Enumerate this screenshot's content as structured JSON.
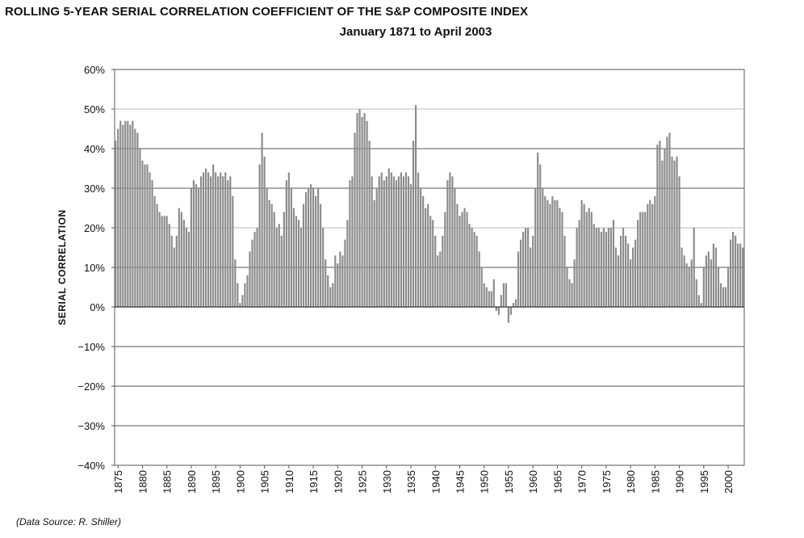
{
  "title": "ROLLING 5-YEAR SERIAL CORRELATION COEFFICIENT OF THE S&P COMPOSITE INDEX",
  "subtitle": "January 1871 to April 2003",
  "ylabel": "SERIAL CORRELATION",
  "source": "(Data Source: R. Shiller)",
  "colors": {
    "bars": "#8c8c8c",
    "grid": "#555555",
    "frame": "#555555"
  },
  "chart_data": {
    "type": "bar",
    "title": "ROLLING 5-YEAR SERIAL CORRELATION COEFFICIENT OF THE S&P COMPOSITE INDEX",
    "subtitle": "January 1871 to April 2003",
    "xlabel": "",
    "ylabel": "SERIAL CORRELATION",
    "xlim": [
      1874.3,
      2003.3
    ],
    "ylim": [
      -0.4,
      0.6
    ],
    "y_ticks": [
      0.6,
      0.5,
      0.4,
      0.3,
      0.2,
      0.1,
      0,
      -0.1,
      -0.2,
      -0.3,
      -0.4
    ],
    "y_tick_labels": [
      "60%",
      "50%",
      "40%",
      "30%",
      "20%",
      "10%",
      "0%",
      "−10%",
      "−20%",
      "−30%",
      "−40%"
    ],
    "x_tick_labels": [
      "1875",
      "1880",
      "1885",
      "1890",
      "1895",
      "1900",
      "1905",
      "1910",
      "1915",
      "1920",
      "1925",
      "1930",
      "1935",
      "1940",
      "1945",
      "1950",
      "1955",
      "1960",
      "1965",
      "1970",
      "1975",
      "1980",
      "1985",
      "1990",
      "1995",
      "2000"
    ],
    "grid": "horizontal",
    "series": [
      {
        "x": [
          1874.5,
          1875,
          1875.5,
          1876,
          1876.5,
          1877,
          1877.5,
          1878,
          1878.5,
          1879,
          1879.5,
          1880,
          1880.5,
          1881,
          1881.5,
          1882,
          1882.5,
          1883,
          1883.5,
          1884,
          1884.5,
          1885,
          1885.5,
          1886,
          1886.5,
          1887,
          1887.5,
          1888,
          1888.5,
          1889,
          1889.5,
          1890,
          1890.5,
          1891,
          1891.5,
          1892,
          1892.5,
          1893,
          1893.5,
          1894,
          1894.5,
          1895,
          1895.5,
          1896,
          1896.5,
          1897,
          1897.5,
          1898,
          1898.5,
          1899,
          1899.5,
          1900,
          1900.5,
          1901,
          1901.5,
          1902,
          1902.5,
          1903,
          1903.5,
          1904,
          1904.5,
          1905,
          1905.5,
          1906,
          1906.5,
          1907,
          1907.5,
          1908,
          1908.5,
          1909,
          1909.5,
          1910,
          1910.5,
          1911,
          1911.5,
          1912,
          1912.5,
          1913,
          1913.5,
          1914,
          1914.5,
          1915,
          1915.5,
          1916,
          1916.5,
          1917,
          1917.5,
          1918,
          1918.5,
          1919,
          1919.5,
          1920,
          1920.5,
          1921,
          1921.5,
          1922,
          1922.5,
          1923,
          1923.5,
          1924,
          1924.5,
          1925,
          1925.5,
          1926,
          1926.5,
          1927,
          1927.5,
          1928,
          1928.5,
          1929,
          1929.5,
          1930,
          1930.5,
          1931,
          1931.5,
          1932,
          1932.5,
          1933,
          1933.5,
          1934,
          1934.5,
          1935,
          1935.5,
          1936,
          1936.5,
          1937,
          1937.5,
          1938,
          1938.5,
          1939,
          1939.5,
          1940,
          1940.5,
          1941,
          1941.5,
          1942,
          1942.5,
          1943,
          1943.5,
          1944,
          1944.5,
          1945,
          1945.5,
          1946,
          1946.5,
          1947,
          1947.5,
          1948,
          1948.5,
          1949,
          1949.5,
          1950,
          1950.5,
          1951,
          1951.5,
          1952,
          1952.5,
          1953,
          1953.5,
          1954,
          1954.5,
          1955,
          1955.5,
          1956,
          1956.5,
          1957,
          1957.5,
          1958,
          1958.5,
          1959,
          1959.5,
          1960,
          1960.5,
          1961,
          1961.5,
          1962,
          1962.5,
          1963,
          1963.5,
          1964,
          1964.5,
          1965,
          1965.5,
          1966,
          1966.5,
          1967,
          1967.5,
          1968,
          1968.5,
          1969,
          1969.5,
          1970,
          1970.5,
          1971,
          1971.5,
          1972,
          1972.5,
          1973,
          1973.5,
          1974,
          1974.5,
          1975,
          1975.5,
          1976,
          1976.5,
          1977,
          1977.5,
          1978,
          1978.5,
          1979,
          1979.5,
          1980,
          1980.5,
          1981,
          1981.5,
          1982,
          1982.5,
          1983,
          1983.5,
          1984,
          1984.5,
          1985,
          1985.5,
          1986,
          1986.5,
          1987,
          1987.5,
          1988,
          1988.5,
          1989,
          1989.5,
          1990,
          1990.5,
          1991,
          1991.5,
          1992,
          1992.5,
          1993,
          1993.5,
          1994,
          1994.5,
          1995,
          1995.5,
          1996,
          1996.5,
          1997,
          1997.5,
          1998,
          1998.5,
          1999,
          1999.5,
          2000,
          2000.5,
          2001,
          2001.5,
          2002,
          2002.5,
          2003
        ],
        "y": [
          0.42,
          0.45,
          0.47,
          0.46,
          0.47,
          0.47,
          0.46,
          0.47,
          0.45,
          0.44,
          0.4,
          0.37,
          0.36,
          0.36,
          0.34,
          0.32,
          0.28,
          0.26,
          0.24,
          0.23,
          0.23,
          0.23,
          0.21,
          0.18,
          0.15,
          0.18,
          0.25,
          0.24,
          0.22,
          0.2,
          0.19,
          0.3,
          0.32,
          0.31,
          0.3,
          0.33,
          0.34,
          0.35,
          0.34,
          0.33,
          0.36,
          0.34,
          0.33,
          0.34,
          0.33,
          0.34,
          0.32,
          0.33,
          0.28,
          0.12,
          0.06,
          0.01,
          0.03,
          0.06,
          0.08,
          0.14,
          0.17,
          0.19,
          0.2,
          0.36,
          0.44,
          0.38,
          0.3,
          0.27,
          0.26,
          0.24,
          0.2,
          0.21,
          0.18,
          0.24,
          0.32,
          0.34,
          0.3,
          0.25,
          0.23,
          0.22,
          0.2,
          0.26,
          0.29,
          0.3,
          0.31,
          0.3,
          0.28,
          0.3,
          0.26,
          0.2,
          0.12,
          0.08,
          0.05,
          0.06,
          0.13,
          0.11,
          0.14,
          0.13,
          0.17,
          0.22,
          0.32,
          0.33,
          0.44,
          0.49,
          0.5,
          0.48,
          0.49,
          0.47,
          0.42,
          0.33,
          0.27,
          0.3,
          0.33,
          0.34,
          0.32,
          0.33,
          0.35,
          0.34,
          0.33,
          0.32,
          0.33,
          0.34,
          0.33,
          0.34,
          0.33,
          0.31,
          0.42,
          0.51,
          0.34,
          0.3,
          0.28,
          0.25,
          0.26,
          0.23,
          0.22,
          0.18,
          0.13,
          0.14,
          0.18,
          0.24,
          0.32,
          0.34,
          0.33,
          0.3,
          0.26,
          0.23,
          0.24,
          0.25,
          0.24,
          0.21,
          0.2,
          0.19,
          0.18,
          0.14,
          0.1,
          0.06,
          0.05,
          0.04,
          0.04,
          0.07,
          -0.01,
          -0.02,
          0.03,
          0.06,
          0.06,
          -0.04,
          -0.02,
          0.01,
          0.02,
          0.14,
          0.17,
          0.19,
          0.2,
          0.2,
          0.15,
          0.18,
          0.3,
          0.39,
          0.36,
          0.3,
          0.28,
          0.27,
          0.26,
          0.28,
          0.27,
          0.27,
          0.25,
          0.24,
          0.18,
          0.1,
          0.07,
          0.06,
          0.12,
          0.2,
          0.22,
          0.27,
          0.26,
          0.24,
          0.25,
          0.24,
          0.21,
          0.2,
          0.2,
          0.19,
          0.2,
          0.19,
          0.2,
          0.2,
          0.22,
          0.15,
          0.13,
          0.18,
          0.2,
          0.18,
          0.16,
          0.12,
          0.15,
          0.17,
          0.22,
          0.24,
          0.24,
          0.24,
          0.26,
          0.27,
          0.26,
          0.28,
          0.41,
          0.42,
          0.37,
          0.4,
          0.43,
          0.44,
          0.38,
          0.37,
          0.38,
          0.33,
          0.15,
          0.13,
          0.11,
          0.1,
          0.12,
          0.2,
          0.07,
          0.03,
          0.01,
          0.1,
          0.13,
          0.14,
          0.12,
          0.16,
          0.15,
          0.1,
          0.06,
          0.05,
          0.05,
          0.1,
          0.17,
          0.19,
          0.18,
          0.16,
          0.16,
          0.15
        ]
      }
    ]
  }
}
